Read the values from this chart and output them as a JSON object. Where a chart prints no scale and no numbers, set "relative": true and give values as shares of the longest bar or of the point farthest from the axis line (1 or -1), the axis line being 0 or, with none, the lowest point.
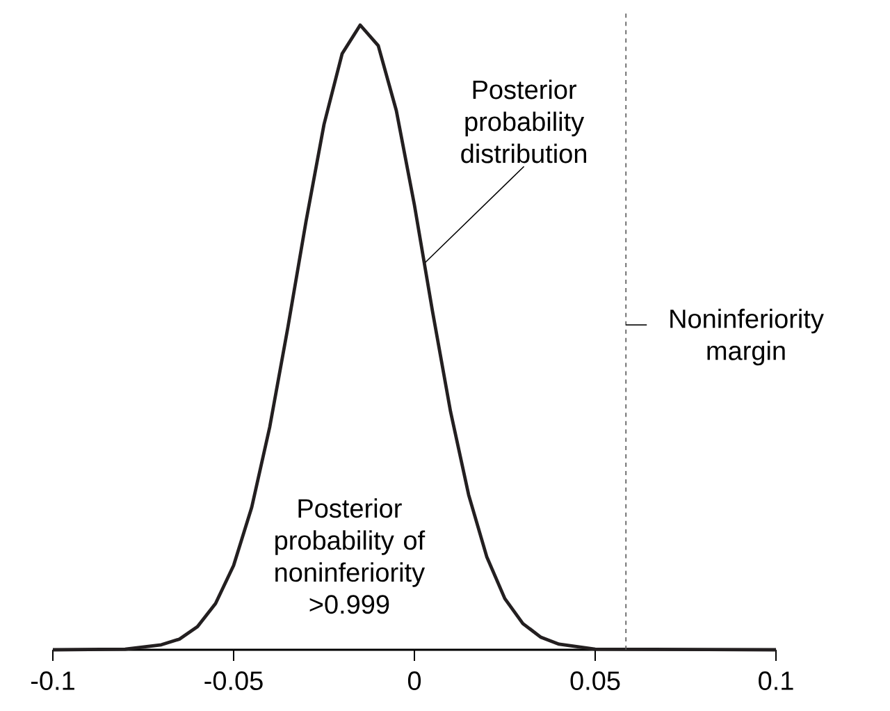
{
  "chart_data": {
    "type": "line",
    "relative": true,
    "x": [
      -0.1,
      -0.08,
      -0.07,
      -0.065,
      -0.06,
      -0.055,
      -0.05,
      -0.045,
      -0.04,
      -0.035,
      -0.03,
      -0.025,
      -0.02,
      -0.015,
      -0.01,
      -0.005,
      0,
      0.005,
      0.01,
      0.015,
      0.02,
      0.025,
      0.03,
      0.035,
      0.04,
      0.05,
      0.1
    ],
    "series": [
      {
        "color": "#231f20",
        "values": [
          0,
          0.001,
          0.008,
          0.017,
          0.037,
          0.074,
          0.135,
          0.228,
          0.357,
          0.516,
          0.685,
          0.841,
          0.954,
          1,
          0.967,
          0.863,
          0.712,
          0.542,
          0.381,
          0.248,
          0.149,
          0.082,
          0.042,
          0.02,
          0.009,
          0.001,
          0
        ]
      }
    ],
    "xlim": [
      -0.1,
      0.1
    ],
    "xticks": [
      -0.1,
      -0.05,
      0,
      0.05,
      0.1
    ],
    "marker": "none",
    "line_style": "solid",
    "grid": false,
    "ref_lines": [
      {
        "axis": "x",
        "value": 0.0585,
        "label": "Noninferiority margin",
        "line_style": "dashed",
        "color": "#555555"
      }
    ],
    "annotations": [
      {
        "text": "Posterior probability distribution",
        "x": 0.003,
        "y": 0.62
      },
      "Posterior probability of noninferiority >0.999"
    ]
  }
}
